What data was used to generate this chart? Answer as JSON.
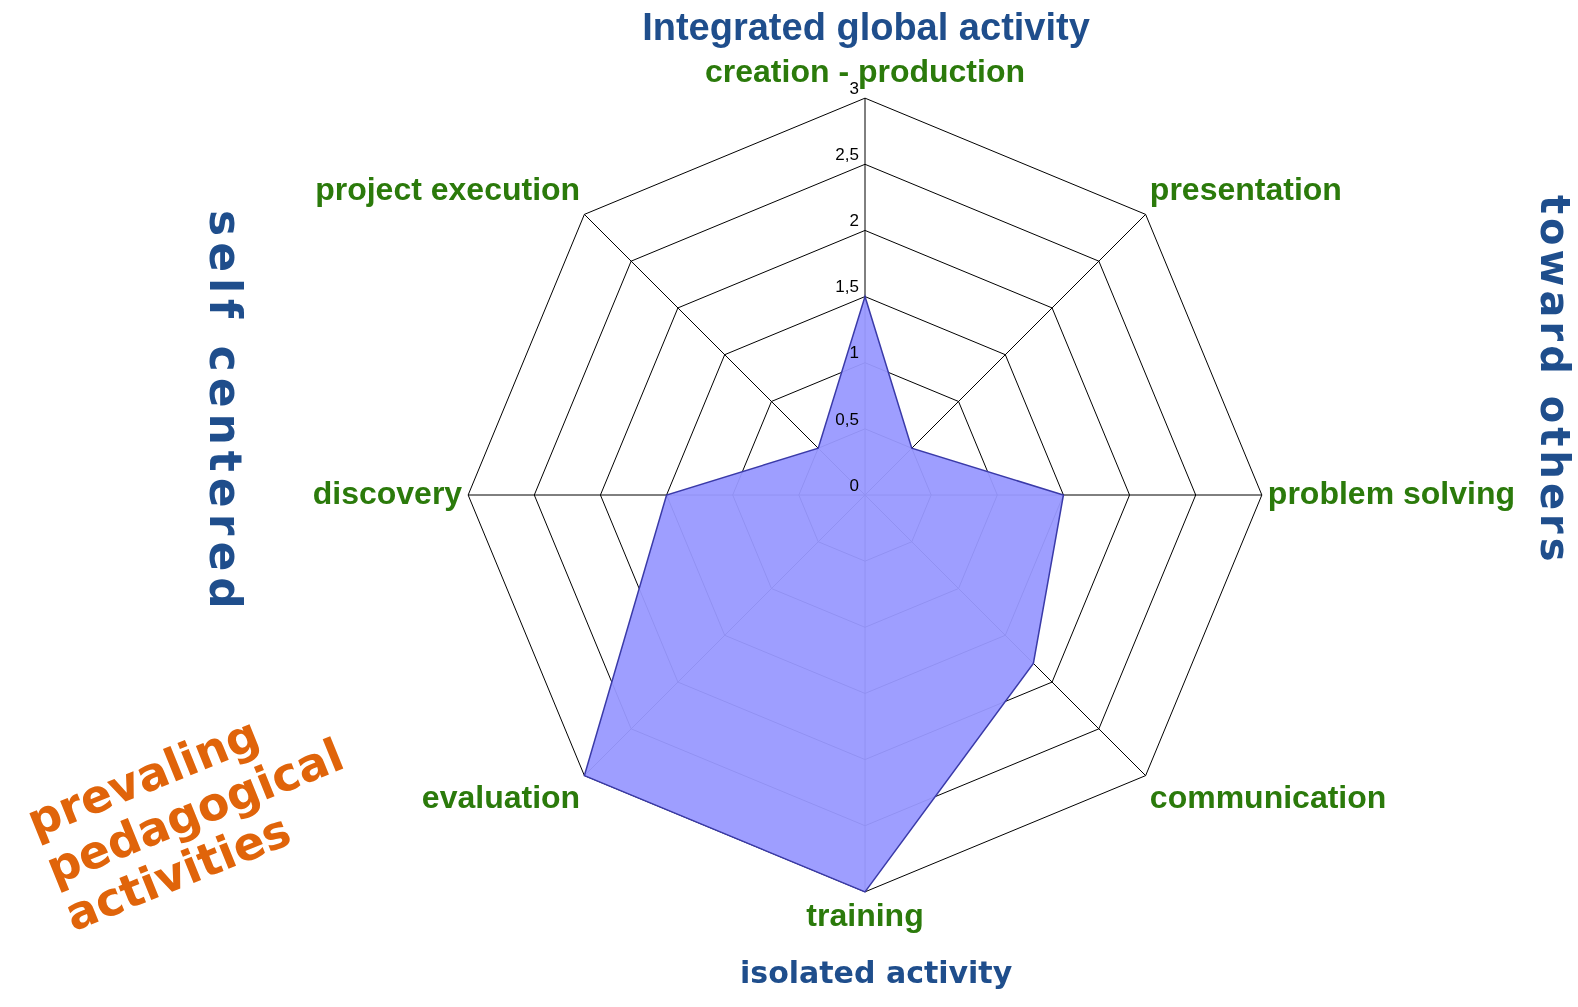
{
  "chart_data": {
    "type": "radar",
    "title": "Integrated global activity",
    "categories": [
      "creation - production",
      "presentation",
      "problem solving",
      "communication",
      "training",
      "evaluation",
      "discovery",
      "project execution"
    ],
    "series": [
      {
        "color": "#9999ff",
        "values": [
          1.5,
          0.5,
          1.5,
          1.8,
          3,
          3,
          1.5,
          0.5
        ]
      }
    ],
    "ylim": [
      0,
      3
    ],
    "yticks": [
      0,
      {
        "value": 0.5,
        "label": "0,5"
      },
      1,
      {
        "value": 1.5,
        "label": "1,5"
      },
      2,
      {
        "value": 2.5,
        "label": "2,5"
      },
      3
    ],
    "grid": true,
    "legend": false,
    "marker": "none",
    "annotations": [
      "isolated activity",
      "self centered",
      "toward others",
      "prevaling pedagogical activities"
    ]
  }
}
